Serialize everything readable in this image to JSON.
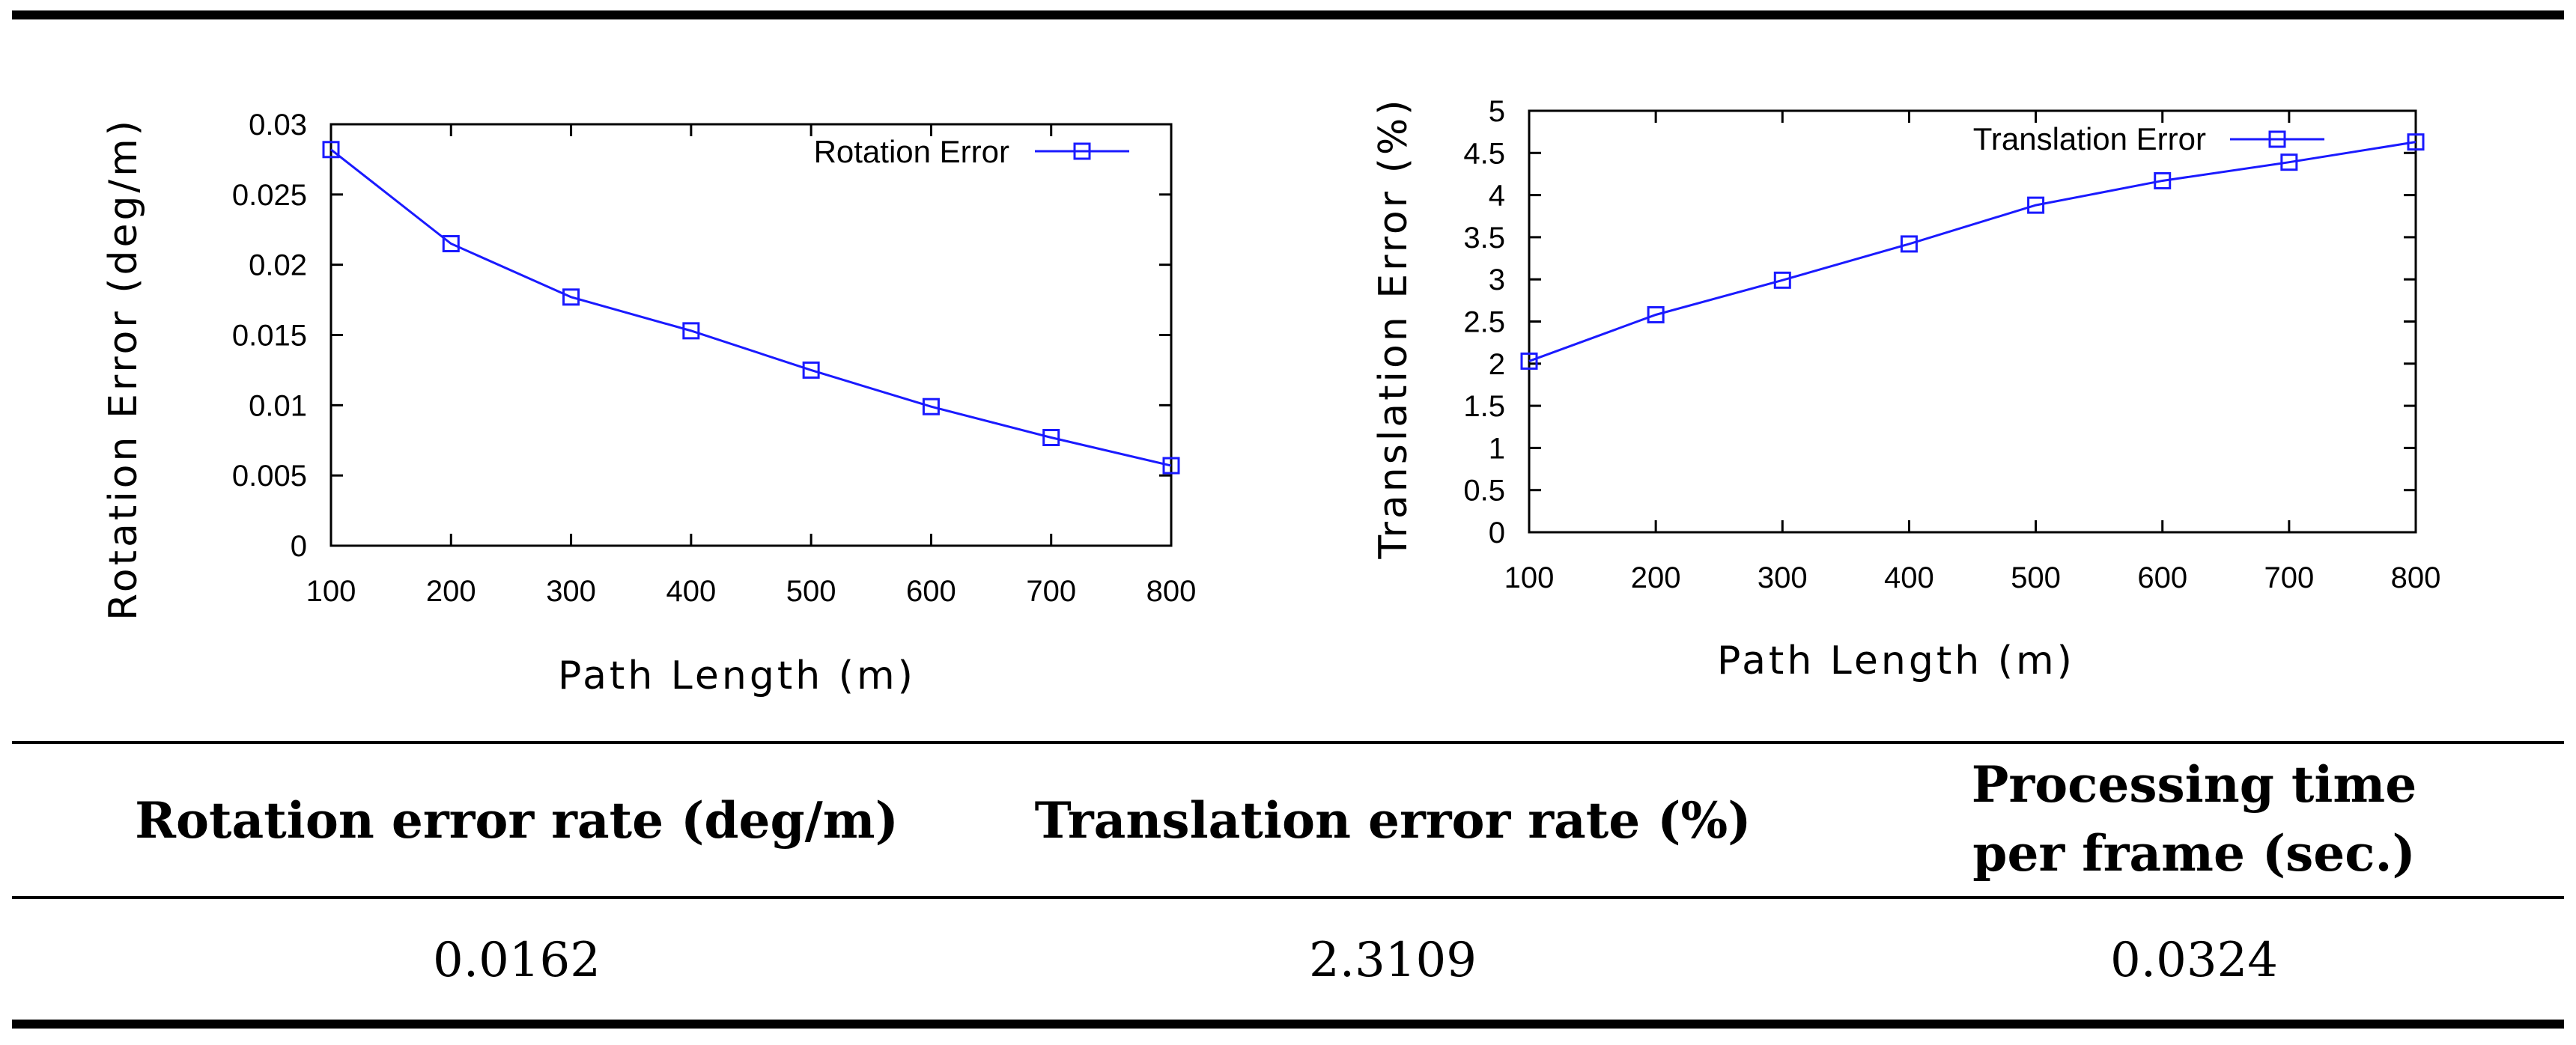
{
  "chart_data": [
    {
      "type": "line",
      "xlabel": "Path Length (m)",
      "ylabel": "Rotation Error (deg/m)",
      "x": [
        100,
        200,
        300,
        400,
        500,
        600,
        700,
        800
      ],
      "series": [
        {
          "name": "Rotation Error",
          "values": [
            0.0282,
            0.0215,
            0.0177,
            0.0153,
            0.0125,
            0.0099,
            0.0077,
            0.0057
          ]
        }
      ],
      "xlim": [
        100,
        800
      ],
      "ylim": [
        0,
        0.03
      ],
      "xticks": [
        "100",
        "200",
        "300",
        "400",
        "500",
        "600",
        "700",
        "800"
      ],
      "yticks": [
        "0",
        "0.005",
        "0.01",
        "0.015",
        "0.02",
        "0.025",
        "0.03"
      ],
      "legend": "top-right",
      "grid": false
    },
    {
      "type": "line",
      "xlabel": "Path Length (m)",
      "ylabel": "Translation Error (%)",
      "x": [
        100,
        200,
        300,
        400,
        500,
        600,
        700,
        800
      ],
      "series": [
        {
          "name": "Translation Error",
          "values": [
            2.03,
            2.58,
            2.99,
            3.42,
            3.88,
            4.17,
            4.39,
            4.63
          ]
        }
      ],
      "xlim": [
        100,
        800
      ],
      "ylim": [
        0,
        5
      ],
      "xticks": [
        "100",
        "200",
        "300",
        "400",
        "500",
        "600",
        "700",
        "800"
      ],
      "yticks": [
        "0",
        "0.5",
        "1",
        "1.5",
        "2",
        "2.5",
        "3",
        "3.5",
        "4",
        "4.5",
        "5"
      ],
      "legend": "top-right",
      "grid": false
    }
  ],
  "table": {
    "headers": [
      "Rotation error rate (deg/m)",
      "Translation error rate (%)",
      "Processing time",
      "per frame (sec.)"
    ],
    "values": [
      "0.0162",
      "2.3109",
      "0.0324"
    ]
  },
  "colors": {
    "series": "#1a1aff",
    "rules": "#000000"
  }
}
